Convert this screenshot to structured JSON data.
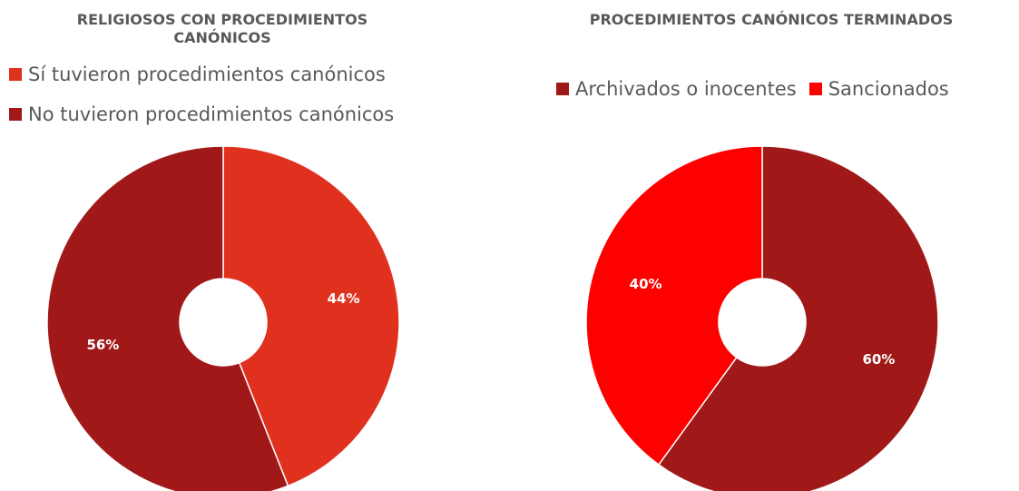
{
  "chart_data": [
    {
      "type": "donut",
      "title": "RELIGIOSOS CON PROCEDIMIENTOS CANÓNICOS",
      "categories": [
        "Sí tuvieron procedimientos canónicos",
        "No tuvieron procedimientos canónicos"
      ],
      "values": [
        44,
        56
      ],
      "value_labels": [
        "44%",
        "56%"
      ],
      "colors": [
        "#e0301e",
        "#a01818"
      ],
      "legend": "top"
    },
    {
      "type": "donut",
      "title": "PROCEDIMIENTOS CANÓNICOS TERMINADOS",
      "categories": [
        "Archivados o inocentes",
        "Sancionados"
      ],
      "values": [
        60,
        40
      ],
      "value_labels": [
        "60%",
        "40%"
      ],
      "colors": [
        "#a01818",
        "#ff0000"
      ],
      "legend": "top"
    }
  ]
}
